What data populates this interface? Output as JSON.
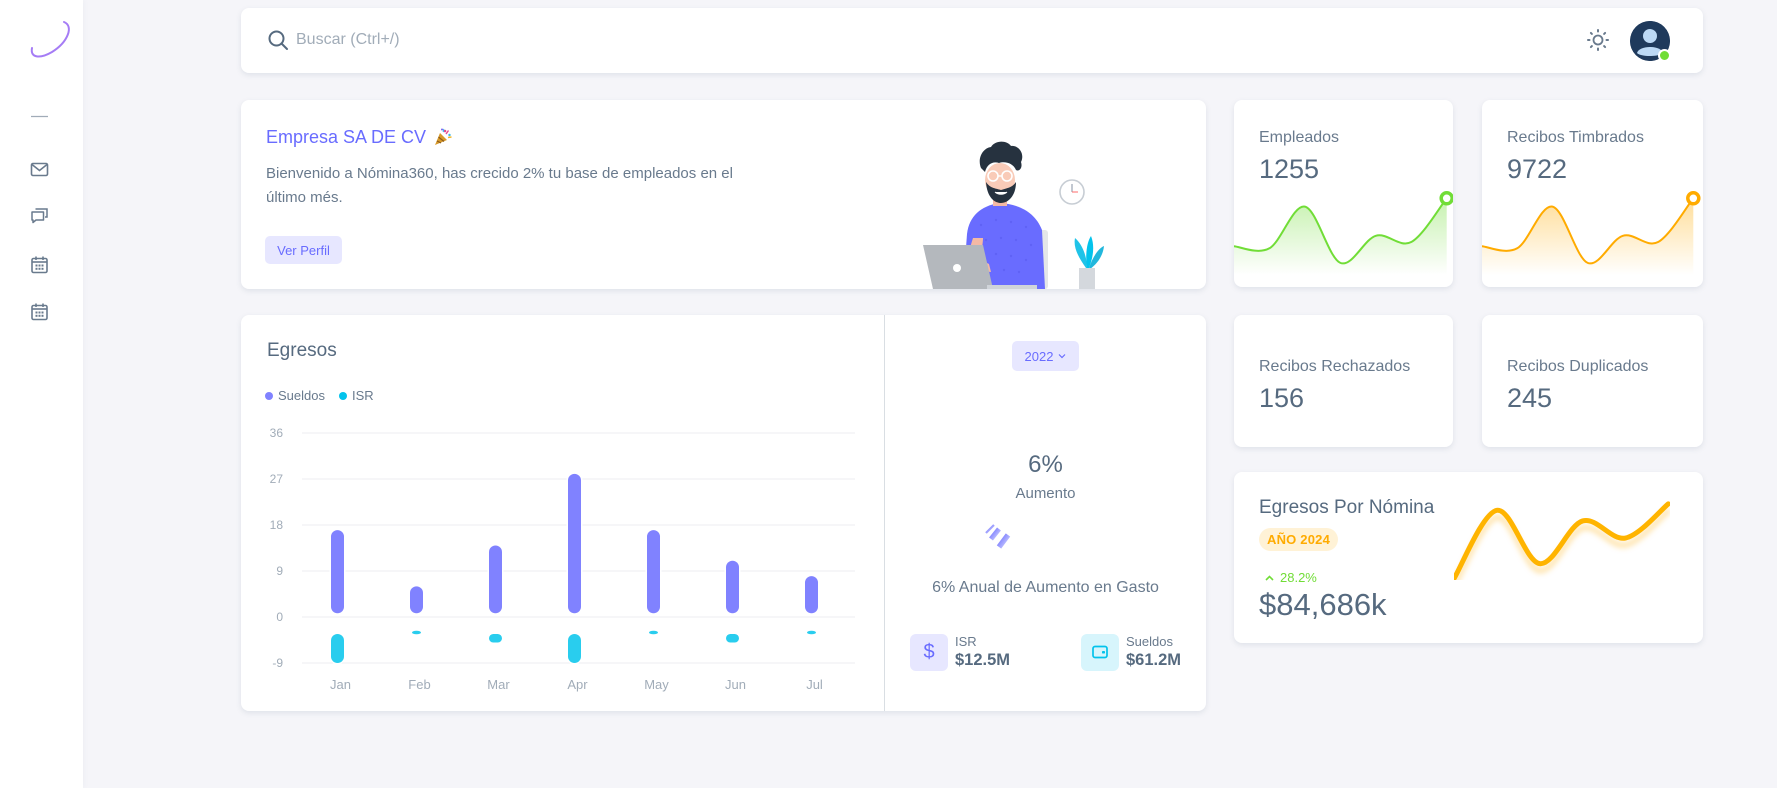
{
  "sidebar": {
    "logo_icon": "logo-swoosh",
    "items": [
      {
        "icon": "minus-icon"
      },
      {
        "icon": "mail-icon"
      },
      {
        "icon": "chat-icon"
      },
      {
        "icon": "calendar-icon"
      },
      {
        "icon": "calendar-icon"
      }
    ]
  },
  "navbar": {
    "search_placeholder": "Buscar (Ctrl+/)",
    "search_value": "",
    "theme_icon": "sun-icon",
    "user_status": "online"
  },
  "welcome": {
    "title": "Empresa SA DE CV",
    "title_icon": "party-popper-icon",
    "message": "Bienvenido a Nómina360, has crecido 2% tu base de empleados en el último més.",
    "button": "Ver Perfil"
  },
  "stats": {
    "empleados": {
      "label": "Empleados",
      "value": "1255"
    },
    "timbrados": {
      "label": "Recibos Timbrados",
      "value": "9722"
    },
    "rechazados": {
      "label": "Recibos Rechazados",
      "value": "156"
    },
    "duplicados": {
      "label": "Recibos Duplicados",
      "value": "245"
    }
  },
  "egresos": {
    "title": "Egresos",
    "legend": [
      {
        "label": "Sueldos",
        "color": "#8082ff"
      },
      {
        "label": "ISR",
        "color": "#29cdee"
      }
    ],
    "year_select": "2022",
    "growth": {
      "percent": "6%",
      "label": "Aumento",
      "caption": "6% Anual de Aumento en Gasto"
    },
    "summary": [
      {
        "label": "ISR",
        "value": "$12.5M",
        "icon": "dollar-icon"
      },
      {
        "label": "Sueldos",
        "value": "$61.2M",
        "icon": "wallet-icon"
      }
    ]
  },
  "nomina": {
    "title": "Egresos Por Nómina",
    "badge": "AÑO 2024",
    "change": "28.2%",
    "change_direction": "up",
    "amount": "$84,686k"
  },
  "colors": {
    "primary": "#696cff",
    "success": "#71dd37",
    "warning": "#ffab00",
    "info": "#03c3ec",
    "heading": "#566a7f",
    "body": "#697a8d",
    "muted": "#a1acb8",
    "background": "#f5f5f9"
  },
  "chart_data": [
    {
      "id": "egresos",
      "type": "bar",
      "title": "Egresos",
      "stacked": true,
      "categories": [
        "Jan",
        "Feb",
        "Mar",
        "Apr",
        "May",
        "Jun",
        "Jul"
      ],
      "series": [
        {
          "name": "Sueldos",
          "values": [
            17,
            6,
            14,
            28,
            17,
            11,
            8
          ],
          "color": "#8082ff"
        },
        {
          "name": "ISR",
          "values": [
            -9,
            -3,
            -5,
            -9,
            -3,
            -5,
            -3
          ],
          "color": "#29cdee"
        }
      ],
      "yticks": [
        36,
        27,
        18,
        9,
        0,
        -9
      ],
      "ylim": [
        -9,
        36
      ],
      "xlabel": "",
      "ylabel": "",
      "grid": true,
      "legend_position": "top-left"
    },
    {
      "id": "empleados",
      "type": "area",
      "title": "Empleados",
      "values": [
        180,
        175,
        275,
        140,
        205,
        190,
        295
      ],
      "color": "#71dd37"
    },
    {
      "id": "timbrados",
      "type": "area",
      "title": "Recibos Timbrados",
      "values": [
        180,
        175,
        275,
        140,
        205,
        190,
        295
      ],
      "color": "#ffab00"
    },
    {
      "id": "nomina",
      "type": "line",
      "title": "Egresos Por Nómina",
      "values": [
        110,
        270,
        145,
        245,
        205,
        285
      ],
      "color": "#ffab00"
    },
    {
      "id": "aumento",
      "type": "radialBar",
      "title": "Aumento",
      "values": [
        6
      ],
      "unit": "%"
    }
  ]
}
